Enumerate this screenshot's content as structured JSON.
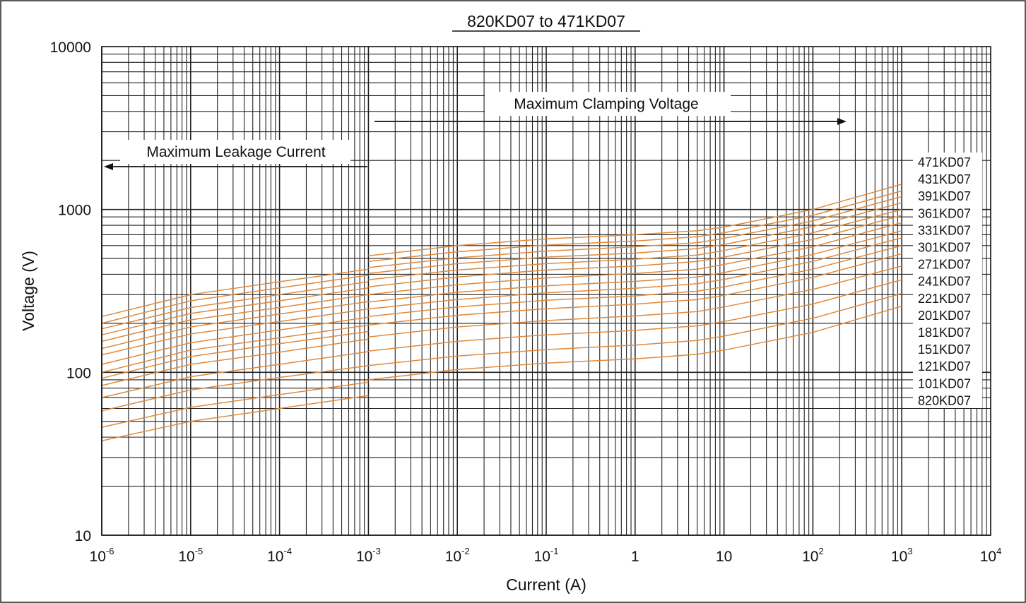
{
  "chart_data": {
    "type": "line",
    "title": "820KD07 to 471KD07",
    "xlabel": "Current (A)",
    "ylabel": "Voltage (V)",
    "x_scale": "log",
    "y_scale": "log",
    "xlim": [
      1e-06,
      10000
    ],
    "ylim": [
      10,
      10000
    ],
    "grid": true,
    "x_tick_labels": [
      {
        "base": "10",
        "exp": "-6"
      },
      {
        "base": "10",
        "exp": "-5"
      },
      {
        "base": "10",
        "exp": "-4"
      },
      {
        "base": "10",
        "exp": "-3"
      },
      {
        "base": "10",
        "exp": "-2"
      },
      {
        "base": "10",
        "exp": "-1"
      },
      {
        "base": "1",
        "exp": ""
      },
      {
        "base": "10",
        "exp": ""
      },
      {
        "base": "10",
        "exp": "2"
      },
      {
        "base": "10",
        "exp": "3"
      },
      {
        "base": "10",
        "exp": "4"
      }
    ],
    "y_tick_labels": [
      "10",
      "100",
      "1000",
      "10000"
    ],
    "annotations": {
      "leakage": "Maximum Leakage Current",
      "clamping": "Maximum Clamping Voltage"
    },
    "series_color": "#e08a3c",
    "series": [
      {
        "name": "471KD07",
        "leakage": [
          [
            1e-06,
            220
          ],
          [
            1e-05,
            300
          ],
          [
            0.0001,
            360
          ],
          [
            0.001,
            430
          ]
        ],
        "clamping": [
          [
            0.001,
            520
          ],
          [
            0.01,
            600
          ],
          [
            0.1,
            660
          ],
          [
            1,
            700
          ],
          [
            5,
            740
          ],
          [
            10,
            780
          ],
          [
            100,
            1000
          ],
          [
            1000,
            1430
          ]
        ]
      },
      {
        "name": "431KD07",
        "leakage": [
          [
            1e-06,
            200
          ],
          [
            1e-05,
            275
          ],
          [
            0.0001,
            330
          ],
          [
            0.001,
            395
          ]
        ],
        "clamping": [
          [
            0.001,
            480
          ],
          [
            0.01,
            550
          ],
          [
            0.1,
            605
          ],
          [
            1,
            640
          ],
          [
            5,
            680
          ],
          [
            10,
            720
          ],
          [
            100,
            920
          ],
          [
            1000,
            1300
          ]
        ]
      },
      {
        "name": "391KD07",
        "leakage": [
          [
            1e-06,
            185
          ],
          [
            1e-05,
            250
          ],
          [
            0.0001,
            300
          ],
          [
            0.001,
            360
          ]
        ],
        "clamping": [
          [
            0.001,
            440
          ],
          [
            0.01,
            505
          ],
          [
            0.1,
            555
          ],
          [
            1,
            590
          ],
          [
            5,
            625
          ],
          [
            10,
            665
          ],
          [
            100,
            850
          ],
          [
            1000,
            1200
          ]
        ]
      },
      {
        "name": "361KD07",
        "leakage": [
          [
            1e-06,
            170
          ],
          [
            1e-05,
            230
          ],
          [
            0.0001,
            275
          ],
          [
            0.001,
            330
          ]
        ],
        "clamping": [
          [
            0.001,
            405
          ],
          [
            0.01,
            465
          ],
          [
            0.1,
            510
          ],
          [
            1,
            540
          ],
          [
            5,
            575
          ],
          [
            10,
            610
          ],
          [
            100,
            785
          ],
          [
            1000,
            1100
          ]
        ]
      },
      {
        "name": "331KD07",
        "leakage": [
          [
            1e-06,
            155
          ],
          [
            1e-05,
            210
          ],
          [
            0.0001,
            250
          ],
          [
            0.001,
            300
          ]
        ],
        "clamping": [
          [
            0.001,
            370
          ],
          [
            0.01,
            425
          ],
          [
            0.1,
            465
          ],
          [
            1,
            495
          ],
          [
            5,
            525
          ],
          [
            10,
            560
          ],
          [
            100,
            720
          ],
          [
            1000,
            1000
          ]
        ]
      },
      {
        "name": "301KD07",
        "leakage": [
          [
            1e-06,
            140
          ],
          [
            1e-05,
            190
          ],
          [
            0.0001,
            228
          ],
          [
            0.001,
            272
          ]
        ],
        "clamping": [
          [
            0.001,
            335
          ],
          [
            0.01,
            385
          ],
          [
            0.1,
            425
          ],
          [
            1,
            450
          ],
          [
            5,
            480
          ],
          [
            10,
            510
          ],
          [
            100,
            655
          ],
          [
            1000,
            920
          ]
        ]
      },
      {
        "name": "271KD07",
        "leakage": [
          [
            1e-06,
            128
          ],
          [
            1e-05,
            172
          ],
          [
            0.0001,
            205
          ],
          [
            0.001,
            245
          ]
        ],
        "clamping": [
          [
            0.001,
            300
          ],
          [
            0.01,
            345
          ],
          [
            0.1,
            380
          ],
          [
            1,
            405
          ],
          [
            5,
            430
          ],
          [
            10,
            460
          ],
          [
            100,
            590
          ],
          [
            1000,
            830
          ]
        ]
      },
      {
        "name": "241KD07",
        "leakage": [
          [
            1e-06,
            112
          ],
          [
            1e-05,
            152
          ],
          [
            0.0001,
            182
          ],
          [
            0.001,
            218
          ]
        ],
        "clamping": [
          [
            0.001,
            270
          ],
          [
            0.01,
            310
          ],
          [
            0.1,
            340
          ],
          [
            1,
            362
          ],
          [
            5,
            385
          ],
          [
            10,
            410
          ],
          [
            100,
            530
          ],
          [
            1000,
            740
          ]
        ]
      },
      {
        "name": "221KD07",
        "leakage": [
          [
            1e-06,
            100
          ],
          [
            1e-05,
            137
          ],
          [
            0.0001,
            163
          ],
          [
            0.001,
            195
          ]
        ],
        "clamping": [
          [
            0.001,
            245
          ],
          [
            0.01,
            280
          ],
          [
            0.1,
            308
          ],
          [
            1,
            328
          ],
          [
            5,
            350
          ],
          [
            10,
            372
          ],
          [
            100,
            480
          ],
          [
            1000,
            670
          ]
        ]
      },
      {
        "name": "201KD07",
        "leakage": [
          [
            1e-06,
            92
          ],
          [
            1e-05,
            125
          ],
          [
            0.0001,
            150
          ],
          [
            0.001,
            178
          ]
        ],
        "clamping": [
          [
            0.001,
            220
          ],
          [
            0.01,
            252
          ],
          [
            0.1,
            277
          ],
          [
            1,
            295
          ],
          [
            5,
            315
          ],
          [
            10,
            335
          ],
          [
            100,
            430
          ],
          [
            1000,
            600
          ]
        ]
      },
      {
        "name": "181KD07",
        "leakage": [
          [
            1e-06,
            83
          ],
          [
            1e-05,
            112
          ],
          [
            0.0001,
            133
          ],
          [
            0.001,
            160
          ]
        ],
        "clamping": [
          [
            0.001,
            195
          ],
          [
            0.01,
            224
          ],
          [
            0.1,
            246
          ],
          [
            1,
            262
          ],
          [
            5,
            280
          ],
          [
            10,
            297
          ],
          [
            100,
            383
          ],
          [
            1000,
            535
          ]
        ]
      },
      {
        "name": "151KD07",
        "leakage": [
          [
            1e-06,
            70
          ],
          [
            1e-05,
            94
          ],
          [
            0.0001,
            112
          ],
          [
            0.001,
            134
          ]
        ],
        "clamping": [
          [
            0.001,
            165
          ],
          [
            0.01,
            190
          ],
          [
            0.1,
            208
          ],
          [
            1,
            222
          ],
          [
            5,
            236
          ],
          [
            10,
            252
          ],
          [
            100,
            323
          ],
          [
            1000,
            450
          ]
        ]
      },
      {
        "name": "121KD07",
        "leakage": [
          [
            1e-06,
            58
          ],
          [
            1e-05,
            78
          ],
          [
            0.0001,
            93
          ],
          [
            0.001,
            110
          ]
        ],
        "clamping": [
          [
            0.001,
            135
          ],
          [
            0.01,
            155
          ],
          [
            0.1,
            170
          ],
          [
            1,
            181
          ],
          [
            5,
            193
          ],
          [
            10,
            205
          ],
          [
            100,
            263
          ],
          [
            1000,
            370
          ]
        ]
      },
      {
        "name": "101KD07",
        "leakage": [
          [
            1e-06,
            46
          ],
          [
            1e-05,
            61
          ],
          [
            0.0001,
            73
          ],
          [
            0.001,
            87
          ]
        ],
        "clamping": [
          [
            0.001,
            110
          ],
          [
            0.01,
            126
          ],
          [
            0.1,
            138
          ],
          [
            1,
            147
          ],
          [
            5,
            157
          ],
          [
            10,
            167
          ],
          [
            100,
            215
          ],
          [
            1000,
            305
          ]
        ]
      },
      {
        "name": "820KD07",
        "leakage": [
          [
            1e-06,
            38
          ],
          [
            1e-05,
            50
          ],
          [
            0.0001,
            60
          ],
          [
            0.001,
            72
          ]
        ],
        "clamping": [
          [
            0.001,
            90
          ],
          [
            0.01,
            104
          ],
          [
            0.1,
            114
          ],
          [
            1,
            121
          ],
          [
            5,
            129
          ],
          [
            10,
            137
          ],
          [
            100,
            176
          ],
          [
            1000,
            255
          ]
        ]
      }
    ]
  }
}
